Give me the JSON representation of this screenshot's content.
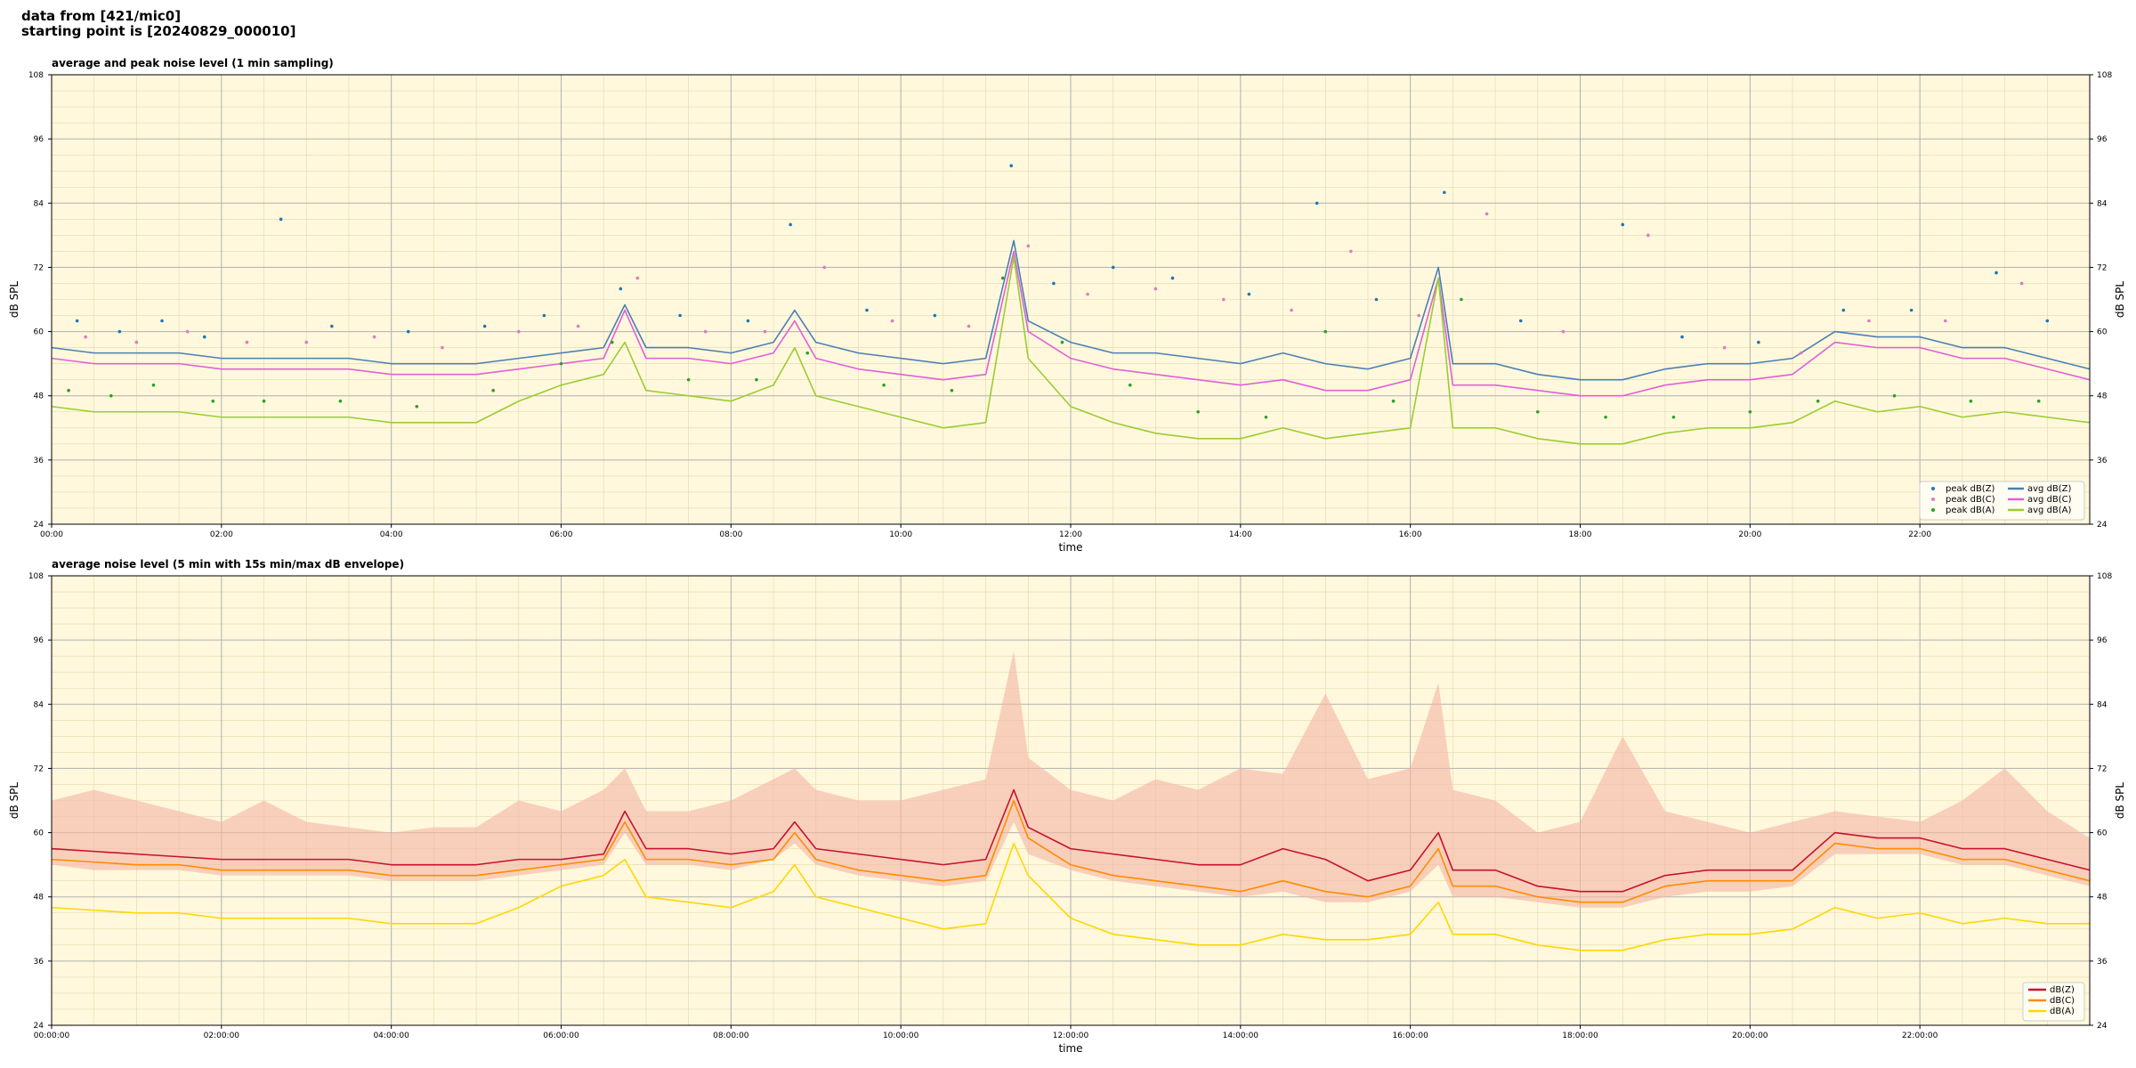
{
  "header": {
    "line1": "data from [421/mic0]",
    "line2": "starting point is [20240829_000010]"
  },
  "colors": {
    "plot_bg": "#fff8dc",
    "peak_z": "#1f77b4",
    "peak_c": "#e377c2",
    "peak_a": "#2ca02c",
    "avg_z": "#4a7fb5",
    "avg_c": "#e15fd9",
    "avg_a": "#9acd32",
    "line_z": "#c8102e",
    "line_c": "#ff8c00",
    "line_a": "#ffd700",
    "envelope": "#f4b8a8"
  },
  "chart_data": [
    {
      "type": "line",
      "title": "average and peak noise level (1 min sampling)",
      "xlabel": "time",
      "ylabel": "dB SPL",
      "x_unit": "hours",
      "xlim": [
        0,
        24
      ],
      "ylim": [
        24,
        108
      ],
      "xticks": [
        0,
        2,
        4,
        6,
        8,
        10,
        12,
        14,
        16,
        18,
        20,
        22
      ],
      "xtick_labels": [
        "00:00",
        "02:00",
        "04:00",
        "06:00",
        "08:00",
        "10:00",
        "12:00",
        "14:00",
        "16:00",
        "18:00",
        "20:00",
        "22:00"
      ],
      "yticks": [
        24,
        36,
        48,
        60,
        72,
        84,
        96,
        108
      ],
      "grid": true,
      "legend_position": "bottom-right",
      "legend": [
        "peak dB(Z)",
        "peak dB(C)",
        "peak dB(A)",
        "avg dB(Z)",
        "avg dB(C)",
        "avg dB(A)"
      ],
      "series": [
        {
          "name": "avg dB(Z)",
          "style": "line",
          "color_key": "avg_z",
          "x": [
            0,
            0.5,
            1,
            1.5,
            2,
            2.5,
            3,
            3.5,
            4,
            4.5,
            5,
            5.5,
            6,
            6.5,
            6.75,
            7,
            7.5,
            8,
            8.5,
            8.75,
            9,
            9.5,
            10,
            10.5,
            11,
            11.33,
            11.5,
            12,
            12.5,
            13,
            13.5,
            14,
            14.5,
            15,
            15.5,
            16,
            16.33,
            16.5,
            17,
            17.5,
            18,
            18.5,
            19,
            19.5,
            20,
            20.5,
            21,
            21.5,
            22,
            22.5,
            23,
            23.5,
            24
          ],
          "y": [
            57,
            56,
            56,
            56,
            55,
            55,
            55,
            55,
            54,
            54,
            54,
            55,
            56,
            57,
            65,
            57,
            57,
            56,
            58,
            64,
            58,
            56,
            55,
            54,
            55,
            77,
            62,
            58,
            56,
            56,
            55,
            54,
            56,
            54,
            53,
            55,
            72,
            54,
            54,
            52,
            51,
            51,
            53,
            54,
            54,
            55,
            60,
            59,
            59,
            57,
            57,
            55,
            53
          ]
        },
        {
          "name": "avg dB(C)",
          "style": "line",
          "color_key": "avg_c",
          "x": [
            0,
            0.5,
            1,
            1.5,
            2,
            2.5,
            3,
            3.5,
            4,
            4.5,
            5,
            5.5,
            6,
            6.5,
            6.75,
            7,
            7.5,
            8,
            8.5,
            8.75,
            9,
            9.5,
            10,
            10.5,
            11,
            11.33,
            11.5,
            12,
            12.5,
            13,
            13.5,
            14,
            14.5,
            15,
            15.5,
            16,
            16.33,
            16.5,
            17,
            17.5,
            18,
            18.5,
            19,
            19.5,
            20,
            20.5,
            21,
            21.5,
            22,
            22.5,
            23,
            23.5,
            24
          ],
          "y": [
            55,
            54,
            54,
            54,
            53,
            53,
            53,
            53,
            52,
            52,
            52,
            53,
            54,
            55,
            64,
            55,
            55,
            54,
            56,
            62,
            55,
            53,
            52,
            51,
            52,
            75,
            60,
            55,
            53,
            52,
            51,
            50,
            51,
            49,
            49,
            51,
            70,
            50,
            50,
            49,
            48,
            48,
            50,
            51,
            51,
            52,
            58,
            57,
            57,
            55,
            55,
            53,
            51
          ]
        },
        {
          "name": "avg dB(A)",
          "style": "line",
          "color_key": "avg_a",
          "x": [
            0,
            0.5,
            1,
            1.5,
            2,
            2.5,
            3,
            3.5,
            4,
            4.5,
            5,
            5.5,
            6,
            6.5,
            6.75,
            7,
            7.5,
            8,
            8.5,
            8.75,
            9,
            9.5,
            10,
            10.5,
            11,
            11.33,
            11.5,
            12,
            12.5,
            13,
            13.5,
            14,
            14.5,
            15,
            15.5,
            16,
            16.33,
            16.5,
            17,
            17.5,
            18,
            18.5,
            19,
            19.5,
            20,
            20.5,
            21,
            21.5,
            22,
            22.5,
            23,
            23.5,
            24
          ],
          "y": [
            46,
            45,
            45,
            45,
            44,
            44,
            44,
            44,
            43,
            43,
            43,
            47,
            50,
            52,
            58,
            49,
            48,
            47,
            50,
            57,
            48,
            46,
            44,
            42,
            43,
            74,
            55,
            46,
            43,
            41,
            40,
            40,
            42,
            40,
            41,
            42,
            70,
            42,
            42,
            40,
            39,
            39,
            41,
            42,
            42,
            43,
            47,
            45,
            46,
            44,
            45,
            44,
            43
          ]
        },
        {
          "name": "peak dB(Z)",
          "style": "points",
          "color_key": "peak_z",
          "x": [
            0.3,
            0.8,
            1.3,
            1.8,
            2.7,
            3.3,
            4.2,
            5.1,
            5.8,
            6.7,
            7.4,
            8.2,
            8.7,
            9.6,
            10.4,
            11.3,
            11.8,
            12.5,
            13.2,
            14.1,
            14.9,
            15.6,
            16.4,
            17.3,
            18.5,
            19.2,
            20.1,
            21.1,
            21.9,
            22.9,
            23.5
          ],
          "y": [
            62,
            60,
            62,
            59,
            81,
            61,
            60,
            61,
            63,
            68,
            63,
            62,
            80,
            64,
            63,
            91,
            69,
            72,
            70,
            67,
            84,
            66,
            86,
            62,
            80,
            59,
            58,
            64,
            64,
            71,
            62
          ]
        },
        {
          "name": "peak dB(C)",
          "style": "points",
          "color_key": "peak_c",
          "x": [
            0.4,
            1.0,
            1.6,
            2.3,
            3.0,
            3.8,
            4.6,
            5.5,
            6.2,
            6.9,
            7.7,
            8.4,
            9.1,
            9.9,
            10.8,
            11.5,
            12.2,
            13.0,
            13.8,
            14.6,
            15.3,
            16.1,
            16.9,
            17.8,
            18.8,
            19.7,
            20.6,
            21.4,
            22.3,
            23.2
          ],
          "y": [
            59,
            58,
            60,
            58,
            58,
            59,
            57,
            60,
            61,
            70,
            60,
            60,
            72,
            62,
            61,
            76,
            67,
            68,
            66,
            64,
            75,
            63,
            82,
            60,
            78,
            57,
            56,
            62,
            62,
            69
          ]
        },
        {
          "name": "peak dB(A)",
          "style": "points",
          "color_key": "peak_a",
          "x": [
            0.2,
            0.7,
            1.2,
            1.9,
            2.5,
            3.4,
            4.3,
            5.2,
            6.0,
            6.6,
            7.5,
            8.3,
            8.9,
            9.8,
            10.6,
            11.2,
            11.9,
            12.7,
            13.5,
            14.3,
            15.0,
            15.8,
            16.6,
            17.5,
            18.3,
            19.1,
            20.0,
            20.8,
            21.7,
            22.6,
            23.4
          ],
          "y": [
            49,
            48,
            50,
            47,
            47,
            47,
            46,
            49,
            54,
            58,
            51,
            51,
            56,
            50,
            49,
            70,
            58,
            50,
            45,
            44,
            60,
            47,
            66,
            45,
            44,
            44,
            45,
            47,
            48,
            47,
            47
          ]
        }
      ]
    },
    {
      "type": "line",
      "title": "average noise level (5 min with 15s min/max dB envelope)",
      "xlabel": "time",
      "ylabel": "dB SPL",
      "x_unit": "hours",
      "xlim": [
        0,
        24
      ],
      "ylim": [
        24,
        108
      ],
      "xticks": [
        0,
        2,
        4,
        6,
        8,
        10,
        12,
        14,
        16,
        18,
        20,
        22
      ],
      "xtick_labels": [
        "00:00:00",
        "02:00:00",
        "04:00:00",
        "06:00:00",
        "08:00:00",
        "10:00:00",
        "12:00:00",
        "14:00:00",
        "16:00:00",
        "18:00:00",
        "20:00:00",
        "22:00:00"
      ],
      "yticks": [
        24,
        36,
        48,
        60,
        72,
        84,
        96,
        108
      ],
      "grid": true,
      "legend_position": "bottom-right",
      "legend": [
        "dB(Z)",
        "dB(C)",
        "dB(A)"
      ],
      "envelope": {
        "x": [
          0,
          0.5,
          1,
          1.5,
          2,
          2.5,
          3,
          3.5,
          4,
          4.5,
          5,
          5.5,
          6,
          6.5,
          6.75,
          7,
          7.5,
          8,
          8.5,
          8.75,
          9,
          9.5,
          10,
          10.5,
          11,
          11.33,
          11.5,
          12,
          12.5,
          13,
          13.5,
          14,
          14.5,
          15,
          15.5,
          16,
          16.33,
          16.5,
          17,
          17.5,
          18,
          18.5,
          19,
          19.5,
          20,
          20.5,
          21,
          21.5,
          22,
          22.5,
          23,
          23.5,
          24
        ],
        "ymin": [
          54,
          53,
          53,
          53,
          52,
          52,
          52,
          52,
          51,
          51,
          51,
          52,
          53,
          54,
          60,
          54,
          54,
          53,
          55,
          58,
          54,
          52,
          51,
          50,
          51,
          62,
          56,
          53,
          51,
          50,
          49,
          48,
          49,
          47,
          47,
          49,
          54,
          48,
          48,
          47,
          46,
          46,
          48,
          49,
          49,
          50,
          56,
          56,
          56,
          54,
          54,
          52,
          50
        ],
        "ymax": [
          66,
          68,
          66,
          64,
          62,
          66,
          62,
          61,
          60,
          61,
          61,
          66,
          64,
          68,
          72,
          64,
          64,
          66,
          70,
          72,
          68,
          66,
          66,
          68,
          70,
          94,
          74,
          68,
          66,
          70,
          68,
          72,
          71,
          86,
          70,
          72,
          88,
          68,
          66,
          60,
          62,
          78,
          64,
          62,
          60,
          62,
          64,
          63,
          62,
          66,
          72,
          64,
          59
        ]
      },
      "series": [
        {
          "name": "dB(Z)",
          "style": "line",
          "color_key": "line_z",
          "x": [
            0,
            0.5,
            1,
            1.5,
            2,
            2.5,
            3,
            3.5,
            4,
            4.5,
            5,
            5.5,
            6,
            6.5,
            6.75,
            7,
            7.5,
            8,
            8.5,
            8.75,
            9,
            9.5,
            10,
            10.5,
            11,
            11.33,
            11.5,
            12,
            12.5,
            13,
            13.5,
            14,
            14.5,
            15,
            15.5,
            16,
            16.33,
            16.5,
            17,
            17.5,
            18,
            18.5,
            19,
            19.5,
            20,
            20.5,
            21,
            21.5,
            22,
            22.5,
            23,
            23.5,
            24
          ],
          "y": [
            57,
            56.5,
            56,
            55.5,
            55,
            55,
            55,
            55,
            54,
            54,
            54,
            55,
            55,
            56,
            64,
            57,
            57,
            56,
            57,
            62,
            57,
            56,
            55,
            54,
            55,
            68,
            61,
            57,
            56,
            55,
            54,
            54,
            57,
            55,
            51,
            53,
            60,
            53,
            53,
            50,
            49,
            49,
            52,
            53,
            53,
            53,
            60,
            59,
            59,
            57,
            57,
            55,
            53
          ]
        },
        {
          "name": "dB(C)",
          "style": "line",
          "color_key": "line_c",
          "x": [
            0,
            0.5,
            1,
            1.5,
            2,
            2.5,
            3,
            3.5,
            4,
            4.5,
            5,
            5.5,
            6,
            6.5,
            6.75,
            7,
            7.5,
            8,
            8.5,
            8.75,
            9,
            9.5,
            10,
            10.5,
            11,
            11.33,
            11.5,
            12,
            12.5,
            13,
            13.5,
            14,
            14.5,
            15,
            15.5,
            16,
            16.33,
            16.5,
            17,
            17.5,
            18,
            18.5,
            19,
            19.5,
            20,
            20.5,
            21,
            21.5,
            22,
            22.5,
            23,
            23.5,
            24
          ],
          "y": [
            55,
            54.5,
            54,
            54,
            53,
            53,
            53,
            53,
            52,
            52,
            52,
            53,
            54,
            55,
            62,
            55,
            55,
            54,
            55,
            60,
            55,
            53,
            52,
            51,
            52,
            66,
            59,
            54,
            52,
            51,
            50,
            49,
            51,
            49,
            48,
            50,
            57,
            50,
            50,
            48,
            47,
            47,
            50,
            51,
            51,
            51,
            58,
            57,
            57,
            55,
            55,
            53,
            51
          ]
        },
        {
          "name": "dB(A)",
          "style": "line",
          "color_key": "line_a",
          "x": [
            0,
            0.5,
            1,
            1.5,
            2,
            2.5,
            3,
            3.5,
            4,
            4.5,
            5,
            5.5,
            6,
            6.5,
            6.75,
            7,
            7.5,
            8,
            8.5,
            8.75,
            9,
            9.5,
            10,
            10.5,
            11,
            11.33,
            11.5,
            12,
            12.5,
            13,
            13.5,
            14,
            14.5,
            15,
            15.5,
            16,
            16.33,
            16.5,
            17,
            17.5,
            18,
            18.5,
            19,
            19.5,
            20,
            20.5,
            21,
            21.5,
            22,
            22.5,
            23,
            23.5,
            24
          ],
          "y": [
            46,
            45.5,
            45,
            45,
            44,
            44,
            44,
            44,
            43,
            43,
            43,
            46,
            50,
            52,
            55,
            48,
            47,
            46,
            49,
            54,
            48,
            46,
            44,
            42,
            43,
            58,
            52,
            44,
            41,
            40,
            39,
            39,
            41,
            40,
            40,
            41,
            47,
            41,
            41,
            39,
            38,
            38,
            40,
            41,
            41,
            42,
            46,
            44,
            45,
            43,
            44,
            43,
            43
          ]
        }
      ]
    }
  ]
}
